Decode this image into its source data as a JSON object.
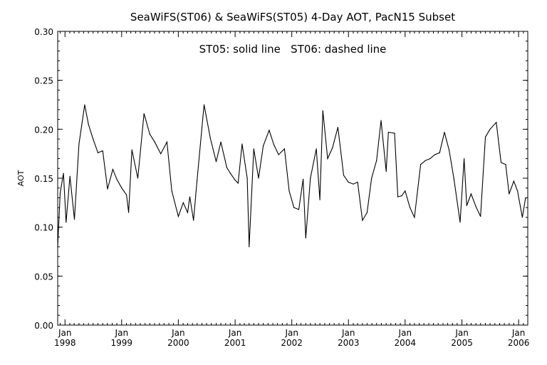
{
  "chart_data": {
    "type": "line",
    "title": "SeaWiFS(ST06) & SeaWiFS(ST05) 4-Day AOT, PacN15 Subset",
    "annotation": "ST05: solid line   ST06: dashed line",
    "xlabel": "",
    "ylabel": "AOT",
    "ylim": [
      0,
      0.3
    ],
    "xlim": [
      "1997-11-15",
      "2006-03-01"
    ],
    "y_ticks": [
      "0.00",
      "0.05",
      "0.10",
      "0.15",
      "0.20",
      "0.25",
      "0.30"
    ],
    "x_ticks": [
      {
        "month": "Jan",
        "year": "1998",
        "date": "1998-01-01"
      },
      {
        "month": "Jan",
        "year": "1999",
        "date": "1999-01-01"
      },
      {
        "month": "Jan",
        "year": "2000",
        "date": "2000-01-01"
      },
      {
        "month": "Jan",
        "year": "2001",
        "date": "2001-01-01"
      },
      {
        "month": "Jan",
        "year": "2002",
        "date": "2002-01-01"
      },
      {
        "month": "Jan",
        "year": "2003",
        "date": "2003-01-01"
      },
      {
        "month": "Jan",
        "year": "2004",
        "date": "2004-01-01"
      },
      {
        "month": "Jan",
        "year": "2005",
        "date": "2005-01-01"
      },
      {
        "month": "Jan",
        "year": "2006",
        "date": "2006-01-01"
      }
    ],
    "grid": false,
    "series": [
      {
        "name": "ST05",
        "style": "solid",
        "color": "#000000",
        "points": [
          [
            "1997-11-15",
            0.08
          ],
          [
            "1997-12-01",
            0.135
          ],
          [
            "1997-12-22",
            0.155
          ],
          [
            "1998-01-08",
            0.105
          ],
          [
            "1998-02-02",
            0.152
          ],
          [
            "1998-03-03",
            0.108
          ],
          [
            "1998-04-01",
            0.185
          ],
          [
            "1998-05-08",
            0.225
          ],
          [
            "1998-06-01",
            0.205
          ],
          [
            "1998-07-01",
            0.19
          ],
          [
            "1998-08-01",
            0.176
          ],
          [
            "1998-09-01",
            0.178
          ],
          [
            "1998-10-02",
            0.139
          ],
          [
            "1998-11-05",
            0.159
          ],
          [
            "1998-12-01",
            0.149
          ],
          [
            "1999-01-01",
            0.14
          ],
          [
            "1999-02-01",
            0.133
          ],
          [
            "1999-02-15",
            0.115
          ],
          [
            "1999-03-08",
            0.179
          ],
          [
            "1999-04-15",
            0.15
          ],
          [
            "1999-05-25",
            0.216
          ],
          [
            "1999-07-01",
            0.195
          ],
          [
            "1999-08-02",
            0.187
          ],
          [
            "1999-09-10",
            0.175
          ],
          [
            "1999-10-20",
            0.187
          ],
          [
            "1999-11-20",
            0.137
          ],
          [
            "2000-01-01",
            0.111
          ],
          [
            "2000-02-02",
            0.125
          ],
          [
            "2000-03-01",
            0.115
          ],
          [
            "2000-03-15",
            0.131
          ],
          [
            "2000-04-08",
            0.107
          ],
          [
            "2000-05-01",
            0.148
          ],
          [
            "2000-06-15",
            0.225
          ],
          [
            "2000-07-25",
            0.191
          ],
          [
            "2000-09-01",
            0.167
          ],
          [
            "2000-10-01",
            0.187
          ],
          [
            "2000-11-08",
            0.161
          ],
          [
            "2000-12-01",
            0.155
          ],
          [
            "2001-01-01",
            0.148
          ],
          [
            "2001-01-20",
            0.145
          ],
          [
            "2001-02-15",
            0.185
          ],
          [
            "2001-03-20",
            0.15
          ],
          [
            "2001-04-01",
            0.08
          ],
          [
            "2001-05-01",
            0.18
          ],
          [
            "2001-06-01",
            0.15
          ],
          [
            "2001-07-01",
            0.183
          ],
          [
            "2001-08-08",
            0.199
          ],
          [
            "2001-09-08",
            0.184
          ],
          [
            "2001-10-08",
            0.174
          ],
          [
            "2001-11-15",
            0.18
          ],
          [
            "2001-12-15",
            0.137
          ],
          [
            "2002-01-15",
            0.12
          ],
          [
            "2002-02-15",
            0.118
          ],
          [
            "2002-03-15",
            0.149
          ],
          [
            "2002-04-01",
            0.089
          ],
          [
            "2002-05-01",
            0.15
          ],
          [
            "2002-06-08",
            0.18
          ],
          [
            "2002-07-01",
            0.128
          ],
          [
            "2002-07-20",
            0.219
          ],
          [
            "2002-08-20",
            0.17
          ],
          [
            "2002-09-20",
            0.181
          ],
          [
            "2002-10-25",
            0.202
          ],
          [
            "2002-12-01",
            0.153
          ],
          [
            "2003-01-01",
            0.146
          ],
          [
            "2003-02-01",
            0.144
          ],
          [
            "2003-03-01",
            0.146
          ],
          [
            "2003-04-01",
            0.107
          ],
          [
            "2003-05-01",
            0.115
          ],
          [
            "2003-05-30",
            0.15
          ],
          [
            "2003-07-01",
            0.168
          ],
          [
            "2003-07-30",
            0.209
          ],
          [
            "2003-09-01",
            0.157
          ],
          [
            "2003-09-15",
            0.197
          ],
          [
            "2003-10-25",
            0.196
          ],
          [
            "2003-11-15",
            0.131
          ],
          [
            "2003-12-10",
            0.132
          ],
          [
            "2004-01-01",
            0.137
          ],
          [
            "2004-02-01",
            0.12
          ],
          [
            "2004-03-01",
            0.11
          ],
          [
            "2004-04-10",
            0.164
          ],
          [
            "2004-05-10",
            0.168
          ],
          [
            "2004-06-10",
            0.17
          ],
          [
            "2004-07-10",
            0.174
          ],
          [
            "2004-08-10",
            0.176
          ],
          [
            "2004-09-10",
            0.197
          ],
          [
            "2004-10-10",
            0.179
          ],
          [
            "2004-11-10",
            0.15
          ],
          [
            "2004-12-20",
            0.105
          ],
          [
            "2005-01-15",
            0.17
          ],
          [
            "2005-02-01",
            0.122
          ],
          [
            "2005-03-01",
            0.134
          ],
          [
            "2005-04-01",
            0.121
          ],
          [
            "2005-05-01",
            0.111
          ],
          [
            "2005-06-01",
            0.192
          ],
          [
            "2005-07-01",
            0.2
          ],
          [
            "2005-08-10",
            0.207
          ],
          [
            "2005-09-10",
            0.166
          ],
          [
            "2005-10-10",
            0.164
          ],
          [
            "2005-11-01",
            0.134
          ],
          [
            "2005-12-01",
            0.147
          ],
          [
            "2005-12-25",
            0.137
          ],
          [
            "2006-01-25",
            0.11
          ],
          [
            "2006-02-15",
            0.13
          ],
          [
            "2006-03-01",
            0.13
          ]
        ]
      }
    ],
    "colors": {
      "line": "#000000",
      "axis": "#000000",
      "background": "#ffffff"
    }
  }
}
